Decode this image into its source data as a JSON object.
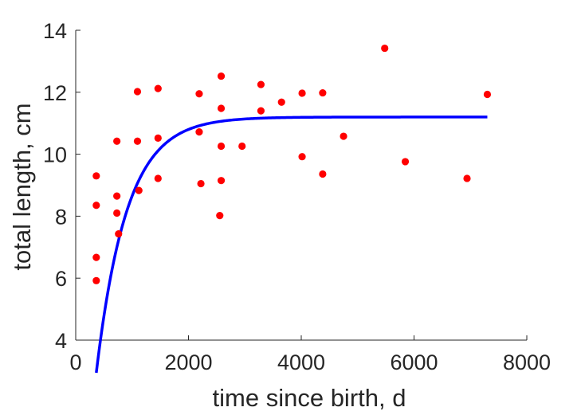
{
  "chart_data": {
    "type": "scatter",
    "title": "",
    "xlabel": "time since birth, d",
    "ylabel": "total length, cm",
    "xlim": [
      0,
      8000
    ],
    "ylim": [
      4,
      14
    ],
    "xticks": [
      0,
      2000,
      4000,
      6000,
      8000
    ],
    "yticks": [
      4,
      6,
      8,
      10,
      12,
      14
    ],
    "xtick_labels": [
      "0",
      "2000",
      "4000",
      "6000",
      "8000"
    ],
    "ytick_labels": [
      "4",
      "6",
      "8",
      "10",
      "12",
      "14"
    ],
    "grid": false,
    "series": [
      {
        "type": "scatter",
        "color": "#ff0000",
        "points": [
          [
            365,
            9.3
          ],
          [
            365,
            8.35
          ],
          [
            365,
            6.67
          ],
          [
            365,
            5.92
          ],
          [
            730,
            10.42
          ],
          [
            730,
            8.65
          ],
          [
            730,
            8.1
          ],
          [
            760,
            7.43
          ],
          [
            1095,
            12.02
          ],
          [
            1095,
            10.42
          ],
          [
            1120,
            8.83
          ],
          [
            1460,
            12.12
          ],
          [
            1460,
            10.52
          ],
          [
            1460,
            9.22
          ],
          [
            2190,
            11.95
          ],
          [
            2190,
            10.72
          ],
          [
            2220,
            9.05
          ],
          [
            2580,
            12.52
          ],
          [
            2580,
            11.48
          ],
          [
            2580,
            10.26
          ],
          [
            2580,
            9.15
          ],
          [
            2555,
            8.02
          ],
          [
            2950,
            10.26
          ],
          [
            3285,
            12.25
          ],
          [
            3285,
            11.4
          ],
          [
            3650,
            11.68
          ],
          [
            4015,
            11.97
          ],
          [
            4015,
            9.92
          ],
          [
            4380,
            11.98
          ],
          [
            4380,
            9.36
          ],
          [
            4750,
            10.58
          ],
          [
            5480,
            13.42
          ],
          [
            5845,
            9.76
          ],
          [
            6940,
            9.22
          ],
          [
            7300,
            11.93
          ]
        ]
      },
      {
        "type": "line",
        "color": "#0000ff",
        "model": "von Bertalanffy fit",
        "x_range": [
          365,
          7300
        ],
        "params": {
          "Linf": 11.2,
          "k": 0.00185,
          "t0": 200
        }
      }
    ]
  }
}
